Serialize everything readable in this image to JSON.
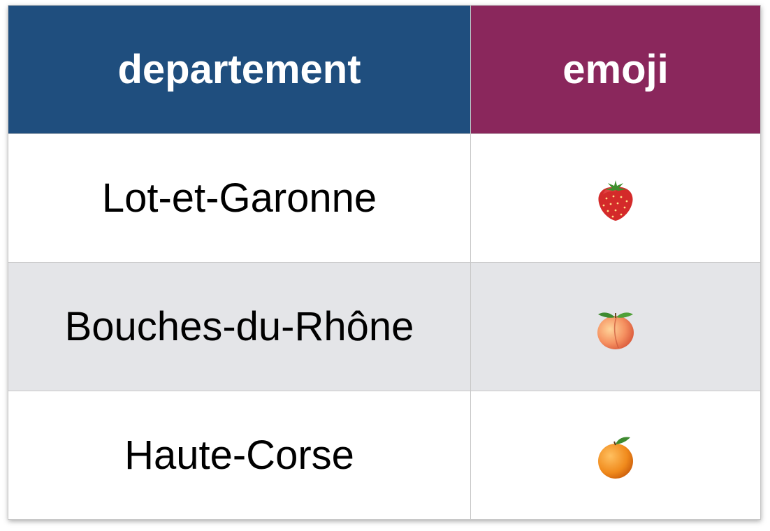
{
  "table": {
    "header_colors": {
      "departement": "#1f4e7e",
      "emoji": "#8a275c"
    },
    "columns": [
      "departement",
      "emoji"
    ],
    "rows": [
      {
        "departement": "Lot-et-Garonne",
        "emoji": "strawberry-icon"
      },
      {
        "departement": "Bouches-du-Rhône",
        "emoji": "peach-icon"
      },
      {
        "departement": "Haute-Corse",
        "emoji": "tangerine-icon"
      }
    ],
    "row_stripe_color": "#e4e5e8"
  }
}
